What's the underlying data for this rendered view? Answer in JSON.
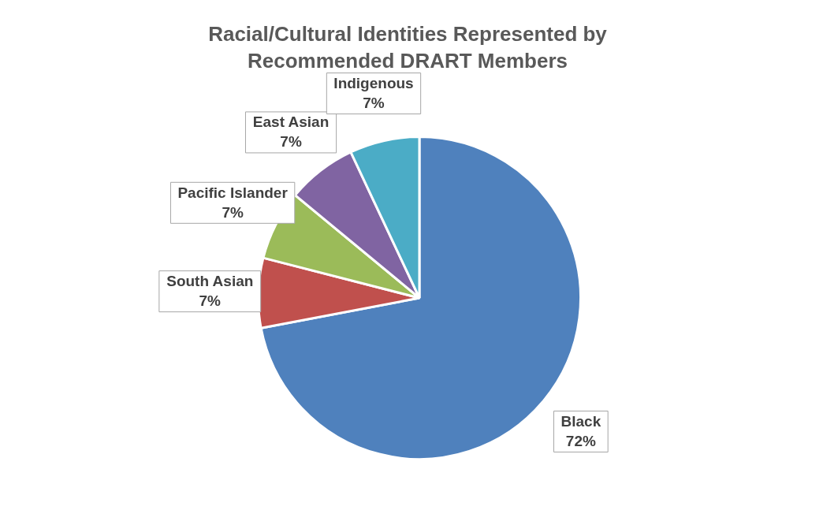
{
  "chart_data": {
    "type": "pie",
    "title": "Racial/Cultural Identities Represented by Recommended DRART Members",
    "categories": [
      "Black",
      "South Asian",
      "Pacific Islander",
      "East Asian",
      "Indigenous"
    ],
    "values": [
      72,
      7,
      7,
      7,
      7
    ],
    "colors": [
      "#4f81bd",
      "#c0504d",
      "#9bbb59",
      "#8064a2",
      "#4bacc6"
    ],
    "value_labels": [
      "72%",
      "7%",
      "7%",
      "7%",
      "7%"
    ],
    "legend": false
  }
}
